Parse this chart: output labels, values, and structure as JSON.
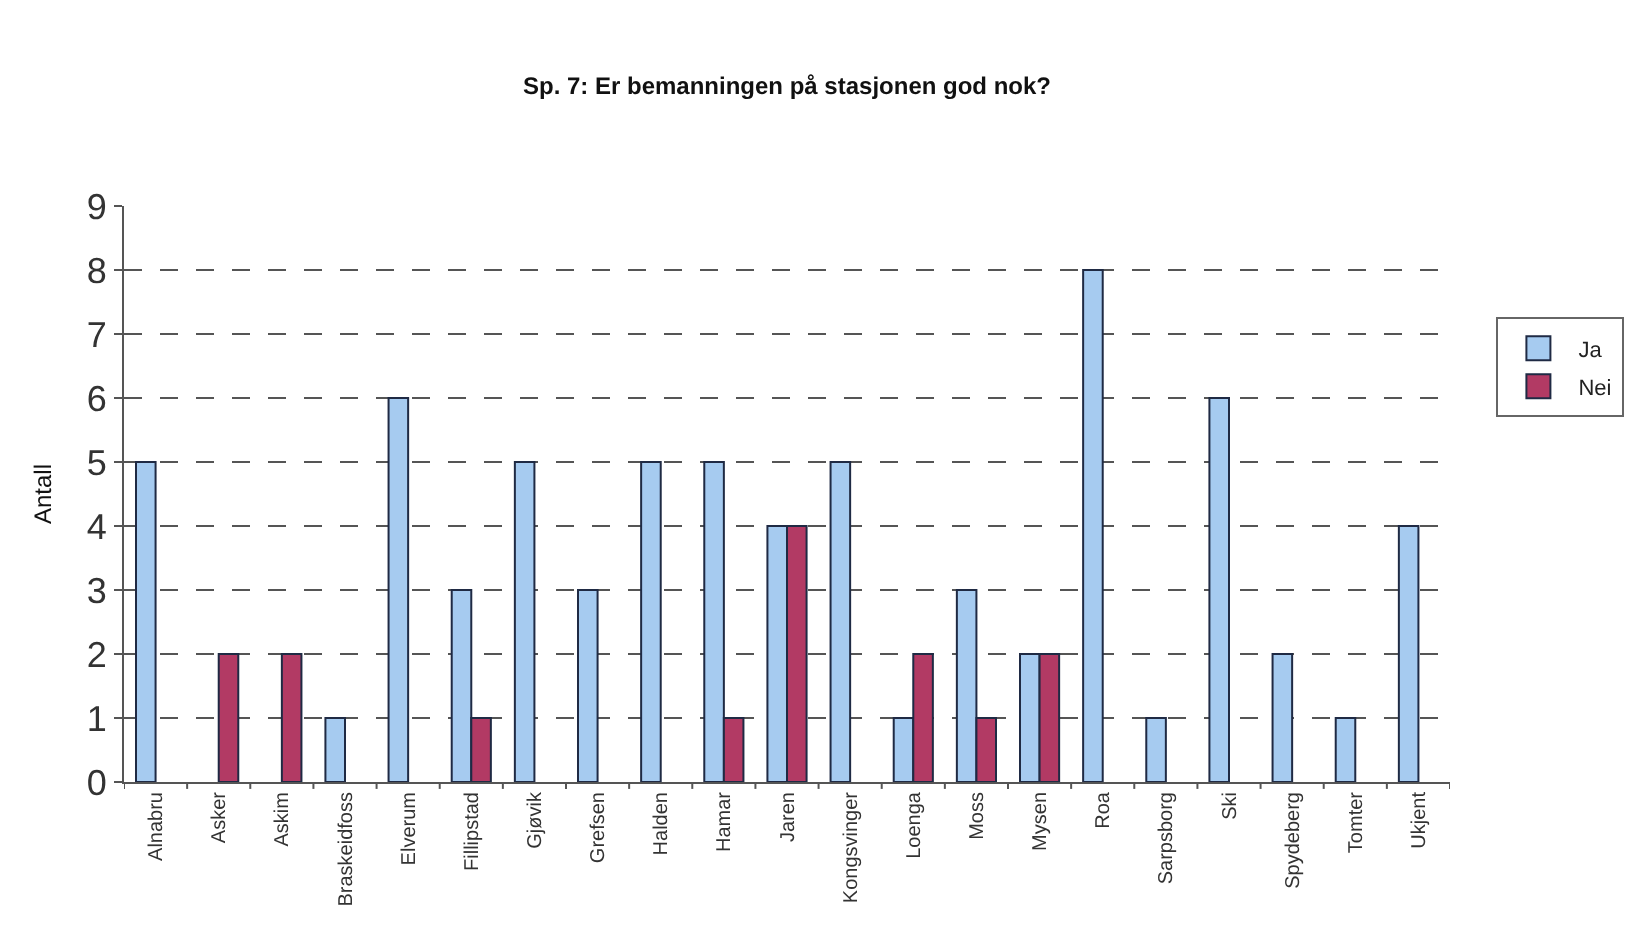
{
  "chart_data": {
    "type": "bar",
    "title": "Sp. 7: Er bemanningen på stasjonen god nok?",
    "ylabel": "Antall",
    "categories": [
      "Alnabru",
      "Asker",
      "Askim",
      "Braskeidfoss",
      "Elverum",
      "Fillipstad",
      "Gjøvik",
      "Grefsen",
      "Halden",
      "Hamar",
      "Jaren",
      "Kongsvinger",
      "Loenga",
      "Moss",
      "Mysen",
      "Roa",
      "Sarpsborg",
      "Ski",
      "Spydeberg",
      "Tomter",
      "Ukjent"
    ],
    "series": [
      {
        "name": "Ja",
        "color": "#a6cbf0",
        "values": [
          5,
          null,
          null,
          1,
          6,
          3,
          5,
          3,
          5,
          5,
          4,
          5,
          1,
          3,
          2,
          8,
          1,
          6,
          2,
          1,
          4
        ]
      },
      {
        "name": "Nei",
        "color": "#b23a64",
        "values": [
          null,
          2,
          2,
          null,
          null,
          1,
          null,
          null,
          null,
          1,
          4,
          null,
          2,
          1,
          2,
          null,
          null,
          null,
          null,
          null,
          null
        ]
      }
    ],
    "ylim": [
      0,
      9
    ],
    "yticks": [
      0,
      1,
      2,
      3,
      4,
      5,
      6,
      7,
      8,
      9
    ],
    "grid": "y",
    "legend": "right"
  }
}
